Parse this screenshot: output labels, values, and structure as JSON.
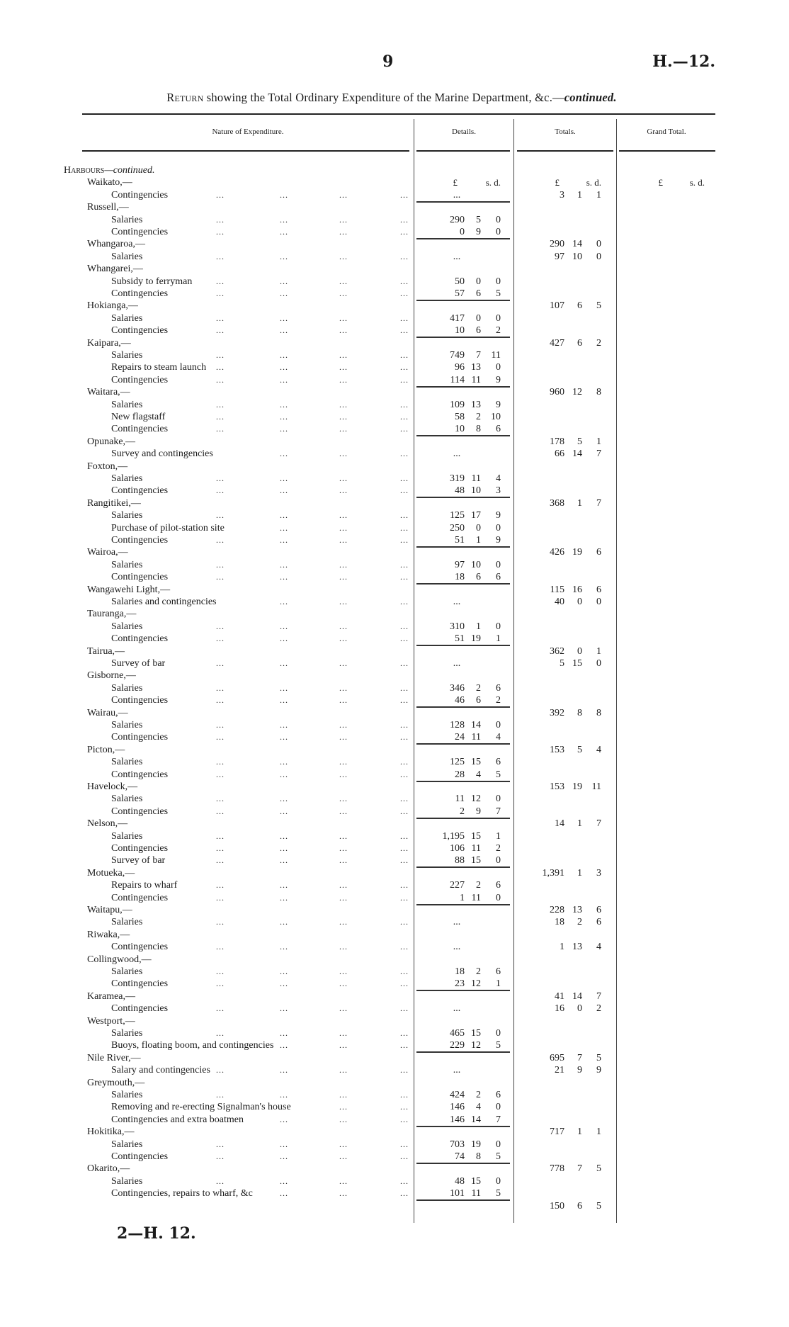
{
  "page_number": "9",
  "doc_code": "H.—12.",
  "title": {
    "lead": "Return",
    "main": " showing the Total Ordinary Expenditure of the Marine Department, &c.—",
    "tail": "continued."
  },
  "columns": {
    "nature": "Nature of Expenditure.",
    "details": "Details.",
    "totals": "Totals.",
    "grand_total": "Grand Total."
  },
  "currency_header": {
    "pounds": "£",
    "sd": "s. d."
  },
  "section": {
    "name": "Harbours",
    "suffix": "—continued."
  },
  "rows": [
    {
      "label": "Waikato,—",
      "level": 1
    },
    {
      "label": "Contingencies",
      "level": 2,
      "detail": "...",
      "total": [
        "3",
        "1",
        "1"
      ]
    },
    {
      "label": "Russell,—",
      "level": 1
    },
    {
      "label": "Salaries",
      "level": 2,
      "detail": [
        "290",
        "5",
        "0"
      ]
    },
    {
      "label": "Contingencies",
      "level": 2,
      "detail": [
        "0",
        "9",
        "0"
      ]
    },
    {
      "label": "Whangaroa,—",
      "level": 1,
      "total": [
        "290",
        "14",
        "0"
      ]
    },
    {
      "label": "Salaries",
      "level": 2,
      "detail": "...",
      "total": [
        "97",
        "10",
        "0"
      ]
    },
    {
      "label": "Whangarei,—",
      "level": 1
    },
    {
      "label": "Subsidy to ferryman",
      "level": 2,
      "detail": [
        "50",
        "0",
        "0"
      ]
    },
    {
      "label": "Contingencies",
      "level": 2,
      "detail": [
        "57",
        "6",
        "5"
      ]
    },
    {
      "label": "Hokianga,—",
      "level": 1,
      "total": [
        "107",
        "6",
        "5"
      ]
    },
    {
      "label": "Salaries",
      "level": 2,
      "detail": [
        "417",
        "0",
        "0"
      ]
    },
    {
      "label": "Contingencies",
      "level": 2,
      "detail": [
        "10",
        "6",
        "2"
      ]
    },
    {
      "label": "Kaipara,—",
      "level": 1,
      "total": [
        "427",
        "6",
        "2"
      ]
    },
    {
      "label": "Salaries",
      "level": 2,
      "detail": [
        "749",
        "7",
        "11"
      ]
    },
    {
      "label": "Repairs to steam launch",
      "level": 2,
      "detail": [
        "96",
        "13",
        "0"
      ]
    },
    {
      "label": "Contingencies",
      "level": 2,
      "detail": [
        "114",
        "11",
        "9"
      ]
    },
    {
      "label": "Waitara,—",
      "level": 1,
      "total": [
        "960",
        "12",
        "8"
      ]
    },
    {
      "label": "Salaries",
      "level": 2,
      "detail": [
        "109",
        "13",
        "9"
      ]
    },
    {
      "label": "New flagstaff",
      "level": 2,
      "detail": [
        "58",
        "2",
        "10"
      ]
    },
    {
      "label": "Contingencies",
      "level": 2,
      "detail": [
        "10",
        "8",
        "6"
      ]
    },
    {
      "label": "Opunake,—",
      "level": 1,
      "total": [
        "178",
        "5",
        "1"
      ]
    },
    {
      "label": "Survey and contingencies",
      "level": 2,
      "detail": "...",
      "total": [
        "66",
        "14",
        "7"
      ]
    },
    {
      "label": "Foxton,—",
      "level": 1
    },
    {
      "label": "Salaries",
      "level": 2,
      "detail": [
        "319",
        "11",
        "4"
      ]
    },
    {
      "label": "Contingencies",
      "level": 2,
      "detail": [
        "48",
        "10",
        "3"
      ]
    },
    {
      "label": "Rangitikei,—",
      "level": 1,
      "total": [
        "368",
        "1",
        "7"
      ]
    },
    {
      "label": "Salaries",
      "level": 2,
      "detail": [
        "125",
        "17",
        "9"
      ]
    },
    {
      "label": "Purchase of pilot-station site",
      "level": 2,
      "detail": [
        "250",
        "0",
        "0"
      ]
    },
    {
      "label": "Contingencies",
      "level": 2,
      "detail": [
        "51",
        "1",
        "9"
      ]
    },
    {
      "label": "Wairoa,—",
      "level": 1,
      "total": [
        "426",
        "19",
        "6"
      ]
    },
    {
      "label": "Salaries",
      "level": 2,
      "detail": [
        "97",
        "10",
        "0"
      ]
    },
    {
      "label": "Contingencies",
      "level": 2,
      "detail": [
        "18",
        "6",
        "6"
      ]
    },
    {
      "label": "Wangawehi Light,—",
      "level": 1,
      "total": [
        "115",
        "16",
        "6"
      ]
    },
    {
      "label": "Salaries and contingencies",
      "level": 2,
      "detail": "...",
      "total": [
        "40",
        "0",
        "0"
      ]
    },
    {
      "label": "Tauranga,—",
      "level": 1
    },
    {
      "label": "Salaries",
      "level": 2,
      "detail": [
        "310",
        "1",
        "0"
      ]
    },
    {
      "label": "Contingencies",
      "level": 2,
      "detail": [
        "51",
        "19",
        "1"
      ]
    },
    {
      "label": "Tairua,—",
      "level": 1,
      "total": [
        "362",
        "0",
        "1"
      ]
    },
    {
      "label": "Survey of bar",
      "level": 2,
      "detail": "...",
      "total": [
        "5",
        "15",
        "0"
      ]
    },
    {
      "label": "Gisborne,—",
      "level": 1
    },
    {
      "label": "Salaries",
      "level": 2,
      "detail": [
        "346",
        "2",
        "6"
      ]
    },
    {
      "label": "Contingencies",
      "level": 2,
      "detail": [
        "46",
        "6",
        "2"
      ]
    },
    {
      "label": "Wairau,—",
      "level": 1,
      "total": [
        "392",
        "8",
        "8"
      ]
    },
    {
      "label": "Salaries",
      "level": 2,
      "detail": [
        "128",
        "14",
        "0"
      ]
    },
    {
      "label": "Contingencies",
      "level": 2,
      "detail": [
        "24",
        "11",
        "4"
      ]
    },
    {
      "label": "Picton,—",
      "level": 1,
      "total": [
        "153",
        "5",
        "4"
      ]
    },
    {
      "label": "Salaries",
      "level": 2,
      "detail": [
        "125",
        "15",
        "6"
      ]
    },
    {
      "label": "Contingencies",
      "level": 2,
      "detail": [
        "28",
        "4",
        "5"
      ]
    },
    {
      "label": "Havelock,—",
      "level": 1,
      "total": [
        "153",
        "19",
        "11"
      ]
    },
    {
      "label": "Salaries",
      "level": 2,
      "detail": [
        "11",
        "12",
        "0"
      ]
    },
    {
      "label": "Contingencies",
      "level": 2,
      "detail": [
        "2",
        "9",
        "7"
      ]
    },
    {
      "label": "Nelson,—",
      "level": 1,
      "total": [
        "14",
        "1",
        "7"
      ]
    },
    {
      "label": "Salaries",
      "level": 2,
      "detail": [
        "1,195",
        "15",
        "1"
      ]
    },
    {
      "label": "Contingencies",
      "level": 2,
      "detail": [
        "106",
        "11",
        "2"
      ]
    },
    {
      "label": "Survey of bar",
      "level": 2,
      "detail": [
        "88",
        "15",
        "0"
      ]
    },
    {
      "label": "Motueka,—",
      "level": 1,
      "total": [
        "1,391",
        "1",
        "3"
      ]
    },
    {
      "label": "Repairs to wharf",
      "level": 2,
      "detail": [
        "227",
        "2",
        "6"
      ]
    },
    {
      "label": "Contingencies",
      "level": 2,
      "detail": [
        "1",
        "11",
        "0"
      ]
    },
    {
      "label": "Waitapu,—",
      "level": 1,
      "total": [
        "228",
        "13",
        "6"
      ]
    },
    {
      "label": "Salaries",
      "level": 2,
      "detail": "...",
      "total": [
        "18",
        "2",
        "6"
      ]
    },
    {
      "label": "Riwaka,—",
      "level": 1
    },
    {
      "label": "Contingencies",
      "level": 2,
      "detail": "...",
      "total": [
        "1",
        "13",
        "4"
      ]
    },
    {
      "label": "Collingwood,—",
      "level": 1
    },
    {
      "label": "Salaries",
      "level": 2,
      "detail": [
        "18",
        "2",
        "6"
      ]
    },
    {
      "label": "Contingencies",
      "level": 2,
      "detail": [
        "23",
        "12",
        "1"
      ]
    },
    {
      "label": "Karamea,—",
      "level": 1,
      "total": [
        "41",
        "14",
        "7"
      ]
    },
    {
      "label": "Contingencies",
      "level": 2,
      "detail": "...",
      "total": [
        "16",
        "0",
        "2"
      ]
    },
    {
      "label": "Westport,—",
      "level": 1
    },
    {
      "label": "Salaries",
      "level": 2,
      "detail": [
        "465",
        "15",
        "0"
      ]
    },
    {
      "label": "Buoys, floating boom, and contingencies",
      "level": 2,
      "detail": [
        "229",
        "12",
        "5"
      ]
    },
    {
      "label": "Nile River,—",
      "level": 1,
      "total": [
        "695",
        "7",
        "5"
      ]
    },
    {
      "label": "Salary and contingencies",
      "level": 2,
      "detail": "...",
      "total": [
        "21",
        "9",
        "9"
      ]
    },
    {
      "label": "Greymouth,—",
      "level": 1
    },
    {
      "label": "Salaries",
      "level": 2,
      "detail": [
        "424",
        "2",
        "6"
      ]
    },
    {
      "label": "Removing and re-erecting Signalman's house",
      "level": 2,
      "detail": [
        "146",
        "4",
        "0"
      ]
    },
    {
      "label": "Contingencies and extra boatmen",
      "level": 2,
      "detail": [
        "146",
        "14",
        "7"
      ]
    },
    {
      "label": "Hokitika,—",
      "level": 1,
      "total": [
        "717",
        "1",
        "1"
      ]
    },
    {
      "label": "Salaries",
      "level": 2,
      "detail": [
        "703",
        "19",
        "0"
      ]
    },
    {
      "label": "Contingencies",
      "level": 2,
      "detail": [
        "74",
        "8",
        "5"
      ]
    },
    {
      "label": "Okarito,—",
      "level": 1,
      "total": [
        "778",
        "7",
        "5"
      ]
    },
    {
      "label": "Salaries",
      "level": 2,
      "detail": [
        "48",
        "15",
        "0"
      ]
    },
    {
      "label": "Contingencies, repairs to wharf, &c",
      "level": 2,
      "detail": [
        "101",
        "11",
        "5"
      ]
    },
    {
      "label": "",
      "level": 1,
      "total": [
        "150",
        "6",
        "5"
      ]
    }
  ],
  "footer": "2—H. 12."
}
